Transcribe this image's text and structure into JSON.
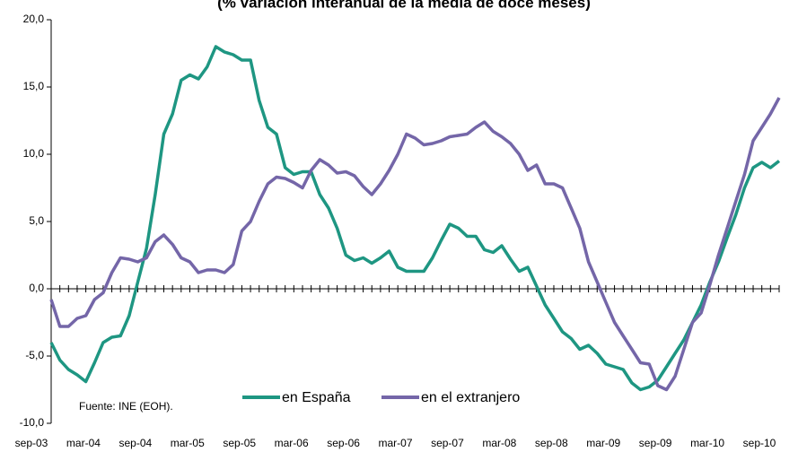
{
  "chart_data": {
    "type": "line",
    "title": "(% variación interanual de la media de doce meses)",
    "note": "Fuente: INE (EOH).",
    "categories": [
      "sep-03",
      null,
      null,
      null,
      null,
      null,
      "mar-04",
      null,
      null,
      null,
      null,
      null,
      "sep-04",
      null,
      null,
      null,
      null,
      null,
      "mar-05",
      null,
      null,
      null,
      null,
      null,
      "sep-05",
      null,
      null,
      null,
      null,
      null,
      "mar-06",
      null,
      null,
      null,
      null,
      null,
      "sep-06",
      null,
      null,
      null,
      null,
      null,
      "mar-07",
      null,
      null,
      null,
      null,
      null,
      "sep-07",
      null,
      null,
      null,
      null,
      null,
      "mar-08",
      null,
      null,
      null,
      null,
      null,
      "sep-08",
      null,
      null,
      null,
      null,
      null,
      "mar-09",
      null,
      null,
      null,
      null,
      null,
      "sep-09",
      null,
      null,
      null,
      null,
      null,
      "mar-10",
      null,
      null,
      null,
      null,
      null,
      "sep-10"
    ],
    "series": [
      {
        "name": "en España",
        "color": "#1e9682",
        "values": [
          -4.0,
          -5.3,
          -6.0,
          -6.4,
          -6.9,
          -5.5,
          -4.0,
          -3.6,
          -3.5,
          -2.0,
          0.5,
          3.0,
          7.0,
          11.5,
          13.0,
          15.5,
          15.9,
          15.6,
          16.5,
          18.0,
          17.6,
          17.4,
          17.0,
          17.0,
          14.0,
          12.0,
          11.5,
          9.0,
          8.5,
          8.7,
          8.7,
          7.0,
          6.0,
          4.5,
          2.5,
          2.1,
          2.3,
          1.9,
          2.3,
          2.8,
          1.6,
          1.3,
          1.3,
          1.3,
          2.3,
          3.6,
          4.8,
          4.5,
          3.9,
          3.9,
          2.9,
          2.7,
          3.2,
          2.2,
          1.3,
          1.6,
          0.2,
          -1.2,
          -2.2,
          -3.2,
          -3.7,
          -4.5,
          -4.2,
          -4.8,
          -5.6,
          -5.8,
          -6.0,
          -7.0,
          -7.5,
          -7.3,
          -6.8,
          -5.8,
          -4.8,
          -3.8,
          -2.5,
          -1.2,
          0.5,
          2.0,
          3.8,
          5.5,
          7.5,
          9.0,
          9.4,
          9.0,
          9.5
        ]
      },
      {
        "name": "en el extranjero",
        "color": "#7466a8",
        "values": [
          -0.8,
          -2.8,
          -2.8,
          -2.2,
          -2.0,
          -0.8,
          -0.3,
          1.2,
          2.3,
          2.2,
          2.0,
          2.3,
          3.5,
          4.0,
          3.3,
          2.3,
          2.0,
          1.2,
          1.4,
          1.4,
          1.2,
          1.8,
          4.3,
          5.0,
          6.5,
          7.8,
          8.3,
          8.2,
          7.9,
          7.5,
          8.8,
          9.6,
          9.2,
          8.6,
          8.7,
          8.4,
          7.6,
          7.0,
          7.8,
          8.8,
          10.0,
          11.5,
          11.2,
          10.7,
          10.8,
          11.0,
          11.3,
          11.4,
          11.5,
          12.0,
          12.4,
          11.7,
          11.3,
          10.8,
          10.0,
          8.8,
          9.2,
          7.8,
          7.8,
          7.5,
          6.0,
          4.5,
          2.0,
          0.5,
          -1.0,
          -2.5,
          -3.5,
          -4.5,
          -5.5,
          -5.6,
          -7.2,
          -7.5,
          -6.5,
          -4.5,
          -2.5,
          -1.8,
          0.3,
          2.5,
          4.5,
          6.5,
          8.5,
          11.0,
          12.0,
          13.0,
          14.2
        ]
      }
    ],
    "ylim": [
      -10,
      20
    ],
    "yticks": [
      {
        "value": -10,
        "label": "-10,0"
      },
      {
        "value": -5,
        "label": "-5,0"
      },
      {
        "value": 0,
        "label": "0,0"
      },
      {
        "value": 5,
        "label": "5,0"
      },
      {
        "value": 10,
        "label": "10,0"
      },
      {
        "value": 15,
        "label": "15,0"
      },
      {
        "value": 20,
        "label": "20,0"
      }
    ],
    "grid": false
  }
}
